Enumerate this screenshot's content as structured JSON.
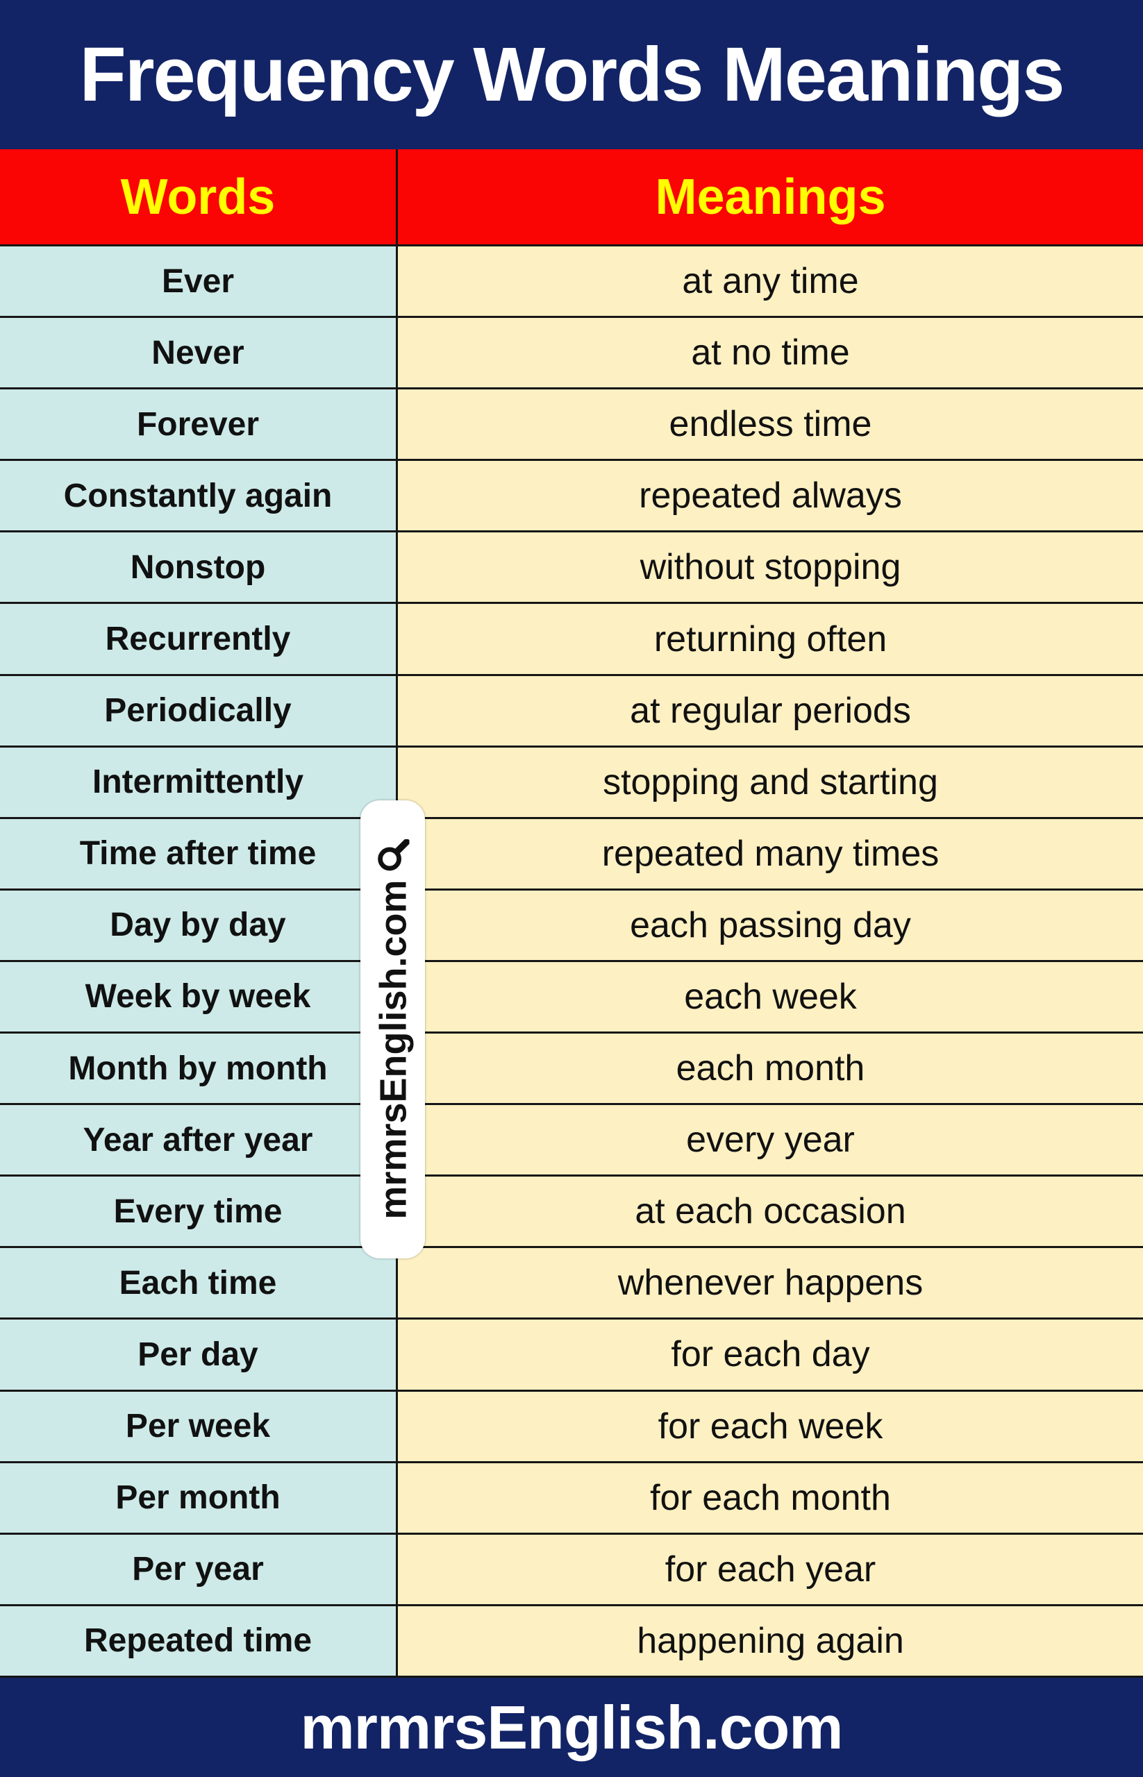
{
  "title": "Frequency Words Meanings",
  "columns": {
    "words": "Words",
    "meanings": "Meanings"
  },
  "rows": [
    {
      "word": "Ever",
      "meaning": "at any time"
    },
    {
      "word": "Never",
      "meaning": "at no time"
    },
    {
      "word": "Forever",
      "meaning": "endless time"
    },
    {
      "word": "Constantly again",
      "meaning": "repeated always"
    },
    {
      "word": "Nonstop",
      "meaning": "without stopping"
    },
    {
      "word": "Recurrently",
      "meaning": "returning often"
    },
    {
      "word": "Periodically",
      "meaning": "at regular periods"
    },
    {
      "word": "Intermittently",
      "meaning": "stopping and starting"
    },
    {
      "word": "Time after time",
      "meaning": "repeated many times"
    },
    {
      "word": "Day by day",
      "meaning": "each passing day"
    },
    {
      "word": "Week by week",
      "meaning": "each week"
    },
    {
      "word": "Month by month",
      "meaning": "each month"
    },
    {
      "word": "Year after year",
      "meaning": "every year"
    },
    {
      "word": "Every time",
      "meaning": "at each occasion"
    },
    {
      "word": "Each time",
      "meaning": "whenever happens"
    },
    {
      "word": "Per day",
      "meaning": "for each day"
    },
    {
      "word": "Per week",
      "meaning": "for each week"
    },
    {
      "word": "Per month",
      "meaning": "for each month"
    },
    {
      "word": "Per year",
      "meaning": "for each year"
    },
    {
      "word": "Repeated time",
      "meaning": "happening again"
    }
  ],
  "watermark": {
    "text": "mrmrsEnglish.com",
    "icon": "magnifier-icon"
  },
  "footer": {
    "text": "mrmrsEnglish.com"
  },
  "colors": {
    "navy": "#122465",
    "red": "#fa0404",
    "yellow": "#ffff00",
    "word_bg": "#cdeae8",
    "meaning_bg": "#fdf0c2",
    "border": "#161616",
    "text": "#111111",
    "title_text": "#ffffff",
    "watermark_bg": "#ffffff"
  }
}
